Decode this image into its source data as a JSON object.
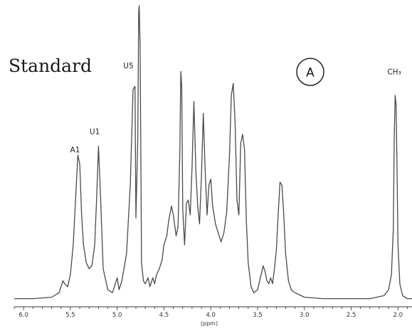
{
  "chart_data": {
    "type": "line",
    "title": "Standard",
    "panel_label": "A",
    "xlabel": "(ppm)",
    "ylabel": "",
    "x_reversed": true,
    "xlim": [
      6.1,
      1.85
    ],
    "ylim": [
      0,
      1.0
    ],
    "x_ticks": [
      6.0,
      5.5,
      5.0,
      4.5,
      4.0,
      3.5,
      3.0,
      2.5,
      2.0
    ],
    "x_tick_labels": [
      "6.0",
      "5.5",
      "5.0",
      "4.5",
      "4.0",
      "3.5",
      "3.0",
      "2.5",
      "2.0"
    ],
    "grid": false,
    "line_color": "#4a4a4a",
    "annotations": [
      {
        "text": "A1",
        "x": 5.45,
        "y": 0.51
      },
      {
        "text": "U1",
        "x": 5.24,
        "y": 0.57
      },
      {
        "text": "U5",
        "x": 4.88,
        "y": 0.79
      },
      {
        "text": "CH₃",
        "x": 2.04,
        "y": 0.77
      }
    ],
    "series": [
      {
        "x": [
          6.1,
          5.9,
          5.7,
          5.62,
          5.58,
          5.56,
          5.53,
          5.5,
          5.47,
          5.44,
          5.42,
          5.4,
          5.38,
          5.36,
          5.33,
          5.3,
          5.27,
          5.24,
          5.22,
          5.2,
          5.18,
          5.15,
          5.1,
          5.05,
          5.02,
          5.0,
          4.98,
          4.95,
          4.9,
          4.86,
          4.83,
          4.81,
          4.8,
          4.78,
          4.77,
          4.765,
          4.755,
          4.74,
          4.72,
          4.7,
          4.67,
          4.65,
          4.62,
          4.6,
          4.58,
          4.55,
          4.52,
          4.5,
          4.47,
          4.45,
          4.42,
          4.4,
          4.37,
          4.35,
          4.33,
          4.32,
          4.31,
          4.3,
          4.28,
          4.26,
          4.24,
          4.22,
          4.2,
          4.18,
          4.16,
          4.14,
          4.12,
          4.1,
          4.08,
          4.06,
          4.04,
          4.02,
          4.0,
          3.98,
          3.95,
          3.92,
          3.89,
          3.86,
          3.83,
          3.8,
          3.78,
          3.76,
          3.74,
          3.72,
          3.7,
          3.68,
          3.66,
          3.64,
          3.62,
          3.6,
          3.57,
          3.54,
          3.5,
          3.47,
          3.44,
          3.42,
          3.4,
          3.38,
          3.36,
          3.34,
          3.32,
          3.3,
          3.28,
          3.26,
          3.24,
          3.22,
          3.2,
          3.17,
          3.14,
          3.1,
          3.0,
          2.8,
          2.5,
          2.3,
          2.15,
          2.1,
          2.07,
          2.05,
          2.04,
          2.03,
          2.02,
          2.01,
          2.0,
          1.98,
          1.95,
          1.9,
          1.85
        ],
        "y": [
          0.02,
          0.02,
          0.025,
          0.04,
          0.08,
          0.07,
          0.06,
          0.1,
          0.2,
          0.38,
          0.5,
          0.47,
          0.3,
          0.2,
          0.14,
          0.12,
          0.13,
          0.2,
          0.35,
          0.53,
          0.38,
          0.12,
          0.05,
          0.04,
          0.07,
          0.09,
          0.05,
          0.08,
          0.17,
          0.4,
          0.72,
          0.73,
          0.29,
          0.55,
          0.98,
          1.0,
          0.87,
          0.14,
          0.08,
          0.07,
          0.09,
          0.06,
          0.09,
          0.07,
          0.1,
          0.12,
          0.15,
          0.2,
          0.23,
          0.28,
          0.33,
          0.3,
          0.23,
          0.26,
          0.52,
          0.78,
          0.73,
          0.32,
          0.2,
          0.34,
          0.35,
          0.3,
          0.46,
          0.68,
          0.45,
          0.33,
          0.27,
          0.43,
          0.64,
          0.45,
          0.3,
          0.4,
          0.42,
          0.33,
          0.27,
          0.24,
          0.21,
          0.24,
          0.31,
          0.5,
          0.7,
          0.74,
          0.61,
          0.35,
          0.3,
          0.54,
          0.57,
          0.52,
          0.28,
          0.14,
          0.06,
          0.04,
          0.05,
          0.09,
          0.13,
          0.11,
          0.08,
          0.07,
          0.09,
          0.07,
          0.12,
          0.18,
          0.3,
          0.41,
          0.4,
          0.3,
          0.17,
          0.08,
          0.05,
          0.04,
          0.025,
          0.02,
          0.02,
          0.02,
          0.03,
          0.05,
          0.1,
          0.25,
          0.55,
          0.7,
          0.67,
          0.45,
          0.2,
          0.07,
          0.03,
          0.02,
          0.02
        ]
      }
    ]
  }
}
